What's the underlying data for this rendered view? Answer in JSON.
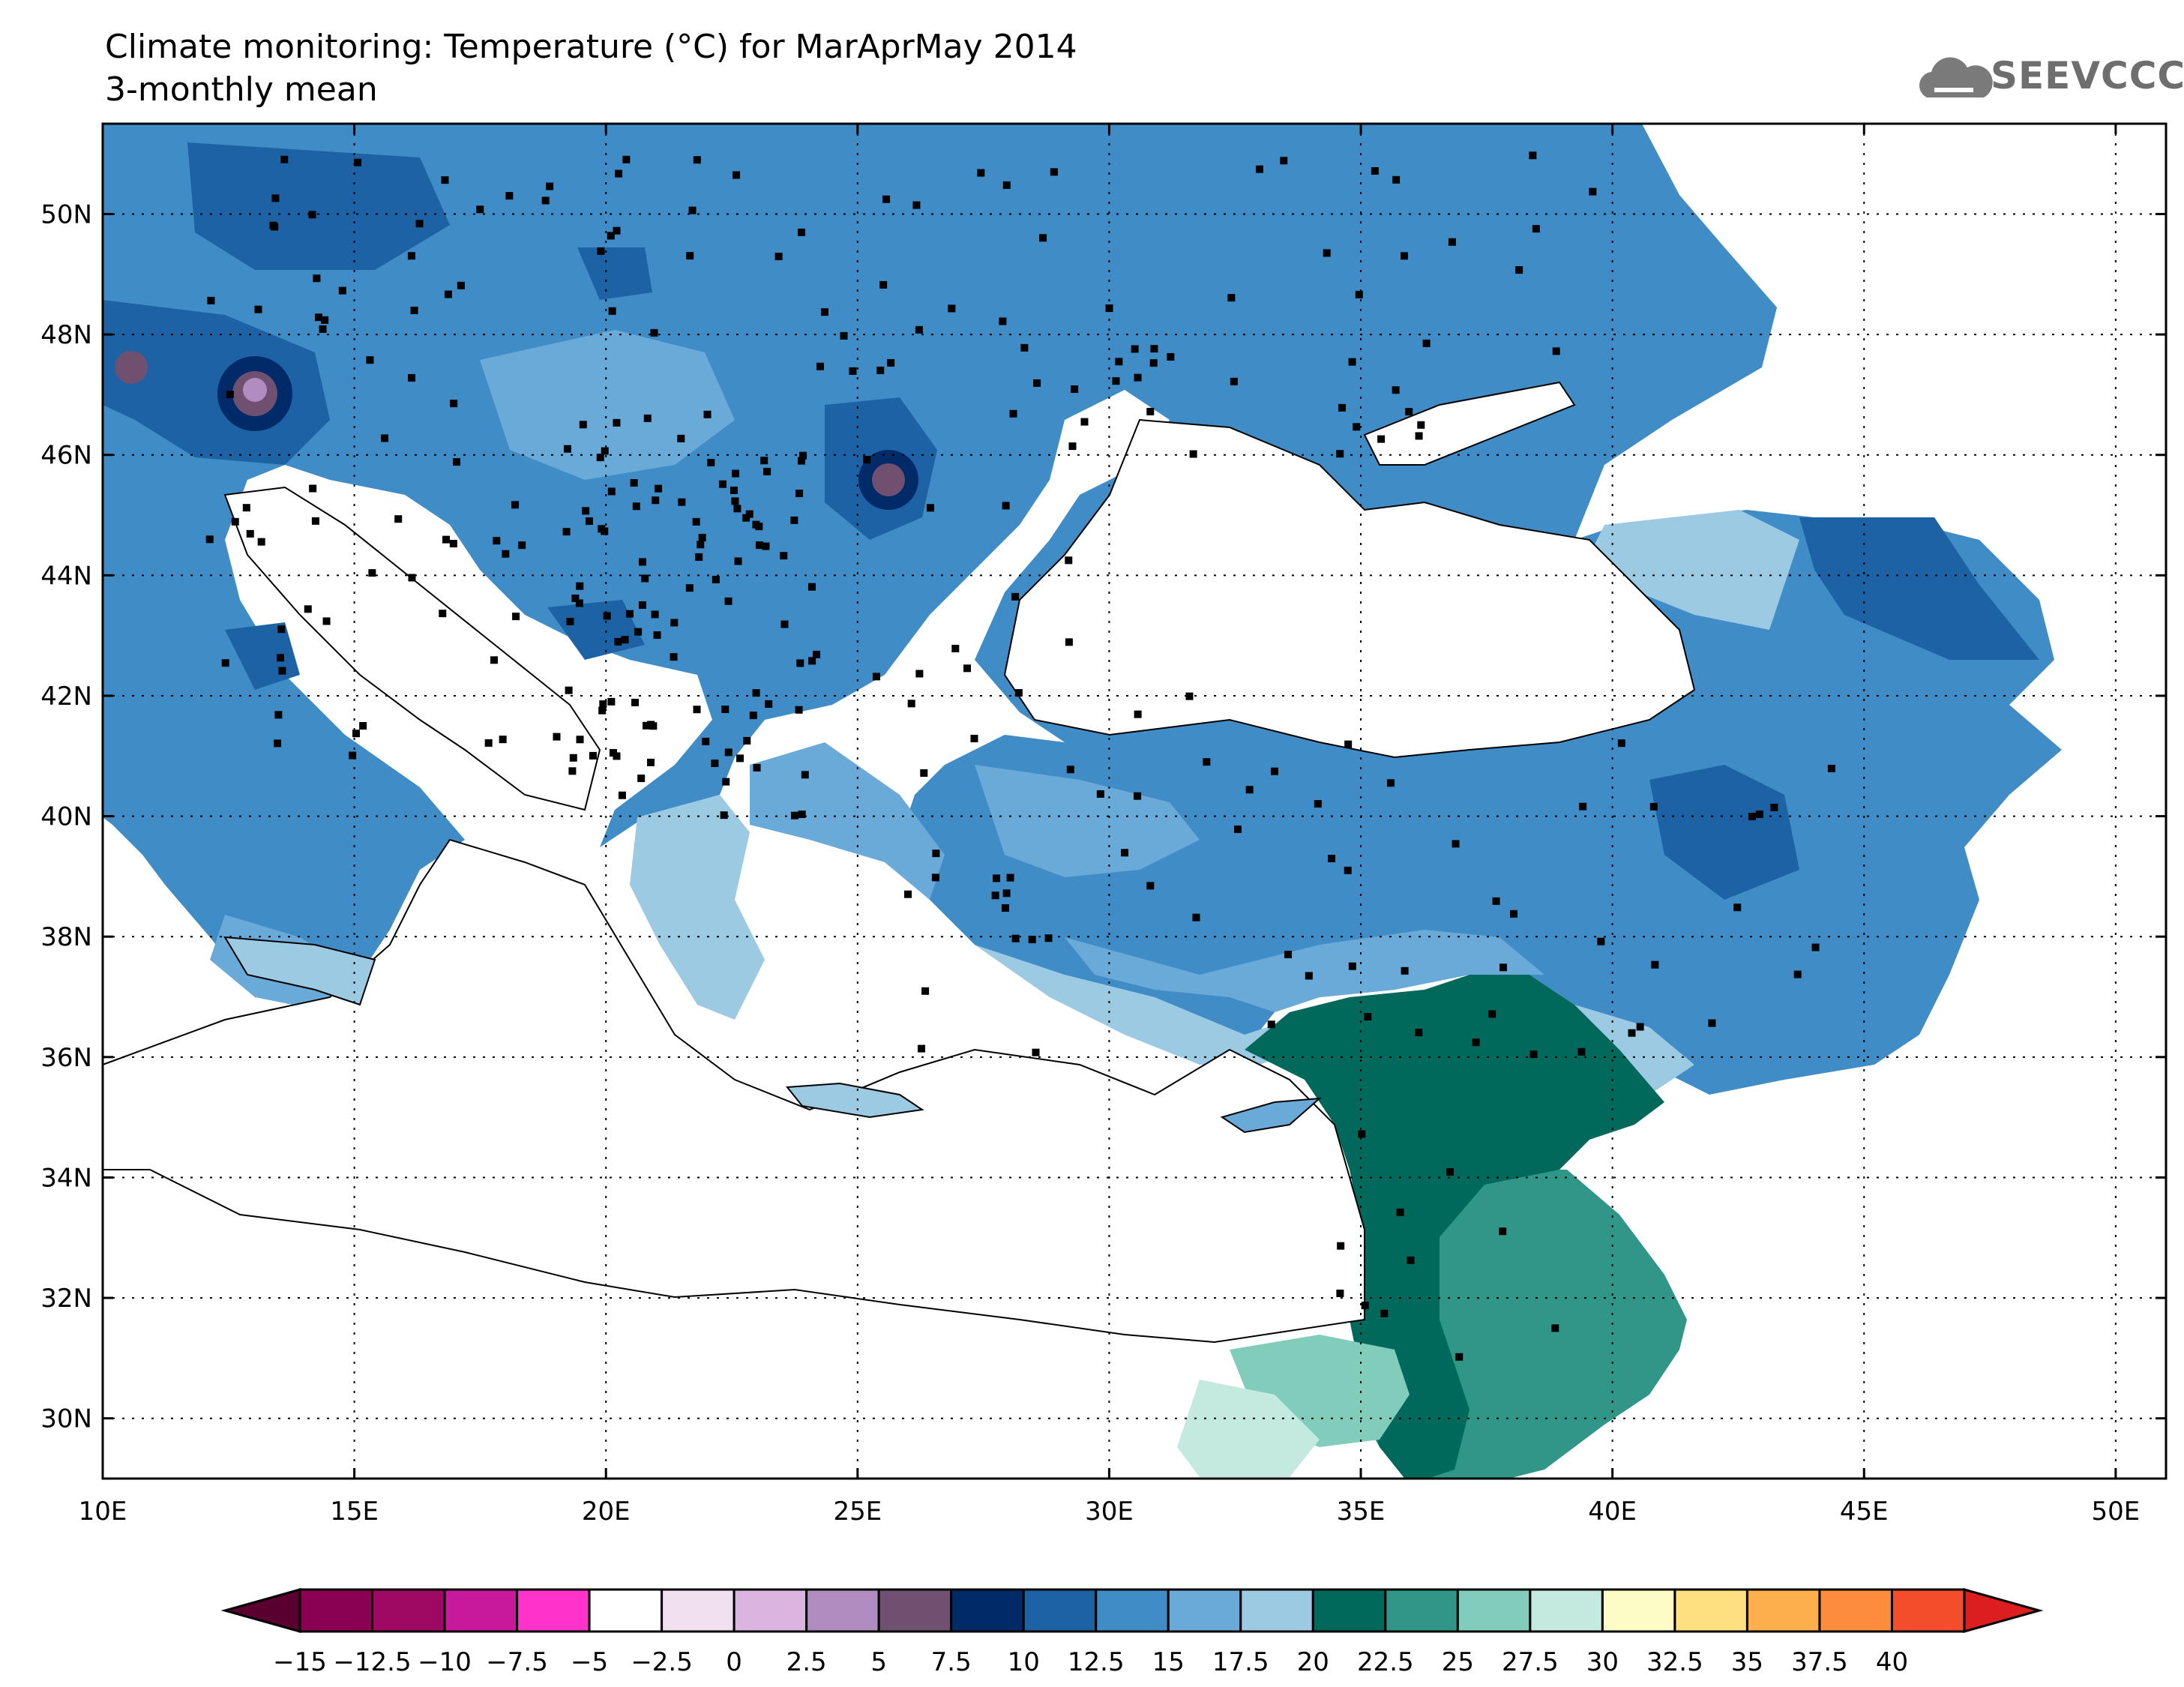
{
  "header": {
    "title": "Climate monitoring: Temperature (°C) for MarAprMay 2014",
    "subtitle": "3-monthly mean"
  },
  "logo": {
    "text": "SEEVCCC",
    "icon": "cloud-icon"
  },
  "map": {
    "lon_range": [
      10,
      51
    ],
    "lat_range": [
      29,
      51.5
    ],
    "lon_ticks": [
      "10E",
      "15E",
      "20E",
      "25E",
      "30E",
      "35E",
      "40E",
      "45E",
      "50E"
    ],
    "lat_ticks": [
      "30N",
      "32N",
      "34N",
      "36N",
      "38N",
      "40N",
      "42N",
      "44N",
      "46N",
      "48N",
      "50N"
    ],
    "grid": "dotted"
  },
  "colorbar": {
    "labels": [
      "−15",
      "−12.5",
      "−10",
      "−7.5",
      "−5",
      "−2.5",
      "0",
      "2.5",
      "5",
      "7.5",
      "10",
      "12.5",
      "15",
      "17.5",
      "20",
      "22.5",
      "25",
      "27.5",
      "30",
      "32.5",
      "35",
      "37.5",
      "40"
    ],
    "colors": [
      "#8a0052",
      "#9e0a63",
      "#c8189c",
      "#ff33cc",
      "#ffffff",
      "#f0e0f0",
      "#dcb4e0",
      "#b08cc0",
      "#705070",
      "#002a68",
      "#1d62a4",
      "#3f8cc6",
      "#6aaad8",
      "#9ccae2",
      "#00695c",
      "#2f9688",
      "#82ccbc",
      "#c4e9df",
      "#fdfbc6",
      "#fde080",
      "#fdae4d",
      "#fd8d3c",
      "#f44d2c"
    ],
    "low_color": "#5a0030",
    "high_color": "#dc1e1e"
  }
}
